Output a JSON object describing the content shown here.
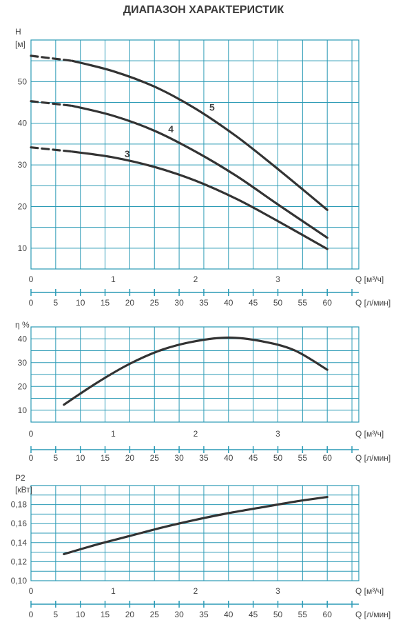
{
  "title": "ДИАПАЗОН ХАРАКТЕРИСТИК",
  "colors": {
    "grid": "#2a9ab5",
    "curve": "#333333",
    "text": "#444444"
  },
  "chart_data": [
    {
      "id": "head",
      "type": "line",
      "ylabel_lines": [
        "H",
        "[м]"
      ],
      "xlabel_m3h": "Q [м³/ч]",
      "xlabel_lmin": "Q [л/мин]",
      "xlim_m3h": [
        0,
        4.0
      ],
      "ylim": [
        5,
        60
      ],
      "x_ticks_m3h": [
        "0",
        "1",
        "2",
        "3"
      ],
      "x_ticks_lmin": [
        "0",
        "5",
        "10",
        "15",
        "20",
        "25",
        "30",
        "35",
        "40",
        "45",
        "50",
        "55",
        "60"
      ],
      "y_ticks": [
        "10",
        "20",
        "30",
        "40",
        "50"
      ],
      "series": [
        {
          "name": "3",
          "dashed_until": 0.5,
          "x": [
            0,
            0.5,
            1.0,
            1.5,
            2.0,
            2.5,
            3.0,
            3.6
          ],
          "y": [
            34.2,
            33.2,
            31.8,
            29.5,
            26.2,
            21.8,
            16.5,
            9.8
          ]
        },
        {
          "name": "4",
          "dashed_until": 0.5,
          "x": [
            0,
            0.5,
            1.0,
            1.5,
            2.0,
            2.5,
            3.0,
            3.6
          ],
          "y": [
            45.3,
            44.2,
            41.8,
            38.2,
            33.2,
            27.3,
            20.5,
            12.5
          ]
        },
        {
          "name": "5",
          "dashed_until": 0.5,
          "x": [
            0,
            0.5,
            1.0,
            1.5,
            2.0,
            2.5,
            3.0,
            3.6
          ],
          "y": [
            56.2,
            55.0,
            52.5,
            48.8,
            43.5,
            36.8,
            29.0,
            19.2
          ]
        }
      ],
      "curve_labels": [
        {
          "text": "3",
          "x": 1.17,
          "y": 31.8
        },
        {
          "text": "4",
          "x": 1.7,
          "y": 37.8
        },
        {
          "text": "5",
          "x": 2.2,
          "y": 43.0
        }
      ]
    },
    {
      "id": "efficiency",
      "type": "line",
      "ylabel_lines": [
        "η %"
      ],
      "xlabel_m3h": "Q [м³/ч]",
      "xlabel_lmin": "Q [л/мин]",
      "xlim_m3h": [
        0,
        4.0
      ],
      "ylim": [
        5,
        45
      ],
      "x_ticks_m3h": [
        "0",
        "1",
        "2",
        "3"
      ],
      "x_ticks_lmin": [
        "0",
        "5",
        "10",
        "15",
        "20",
        "25",
        "30",
        "35",
        "40",
        "45",
        "50",
        "55",
        "60"
      ],
      "y_ticks": [
        "10",
        "20",
        "30",
        "40"
      ],
      "series": [
        {
          "name": "",
          "x": [
            0.4,
            0.8,
            1.2,
            1.6,
            2.0,
            2.4,
            2.8,
            3.2,
            3.6
          ],
          "y": [
            12.3,
            21.5,
            29.5,
            35.5,
            39.0,
            40.5,
            39.0,
            35.2,
            27.0
          ]
        }
      ]
    },
    {
      "id": "power",
      "type": "line",
      "ylabel_lines": [
        "P2",
        "[кВт]"
      ],
      "xlabel_m3h": "Q [м³/ч]",
      "xlabel_lmin": "Q [л/мин]",
      "xlim_m3h": [
        0,
        4.0
      ],
      "ylim": [
        0.1,
        0.2
      ],
      "x_ticks_m3h": [
        "0",
        "1",
        "2",
        "3"
      ],
      "x_ticks_lmin": [
        "0",
        "5",
        "10",
        "15",
        "20",
        "25",
        "30",
        "35",
        "40",
        "45",
        "50",
        "55",
        "60"
      ],
      "y_ticks": [
        "0,10",
        "0,12",
        "0,14",
        "0,16",
        "0,18"
      ],
      "series": [
        {
          "name": "",
          "x": [
            0.4,
            0.8,
            1.2,
            1.6,
            2.0,
            2.4,
            2.8,
            3.2,
            3.6
          ],
          "y": [
            0.128,
            0.138,
            0.147,
            0.156,
            0.164,
            0.171,
            0.177,
            0.183,
            0.188
          ]
        }
      ]
    }
  ]
}
